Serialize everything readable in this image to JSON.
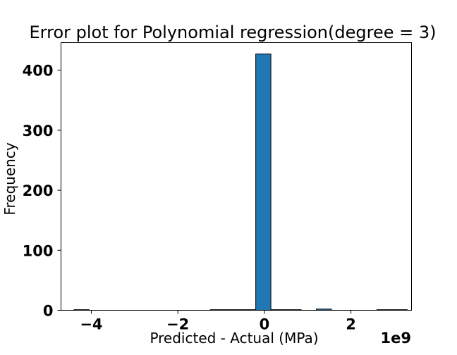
{
  "chart_data": {
    "type": "bar",
    "title": "Error plot for Polynomial regression(degree = 3)",
    "xlabel": "Predicted - Actual (MPa)",
    "ylabel": "Frequency",
    "x_offset_label": "1e9",
    "xlim": [
      -4.7,
      3.4
    ],
    "ylim": [
      0,
      446
    ],
    "xticks": [
      -4,
      -2,
      0,
      2
    ],
    "xtick_labels": [
      "−4",
      "−2",
      "0",
      "2"
    ],
    "yticks": [
      0,
      100,
      200,
      300,
      400
    ],
    "ytick_labels": [
      "0",
      "100",
      "200",
      "300",
      "400"
    ],
    "bar_color": "#1f77b4",
    "grid": false,
    "bins": [
      {
        "x0": -4.4,
        "x1": -4.05,
        "value": 1
      },
      {
        "x0": -4.05,
        "x1": -3.7,
        "value": 0
      },
      {
        "x0": -3.7,
        "x1": -3.35,
        "value": 0
      },
      {
        "x0": -3.35,
        "x1": -3.0,
        "value": 0
      },
      {
        "x0": -3.0,
        "x1": -2.65,
        "value": 0
      },
      {
        "x0": -2.65,
        "x1": -2.3,
        "value": 0
      },
      {
        "x0": -2.3,
        "x1": -1.95,
        "value": 0
      },
      {
        "x0": -1.95,
        "x1": -1.6,
        "value": 0
      },
      {
        "x0": -1.6,
        "x1": -1.25,
        "value": 0
      },
      {
        "x0": -1.25,
        "x1": -0.9,
        "value": 1
      },
      {
        "x0": -0.9,
        "x1": -0.55,
        "value": 1
      },
      {
        "x0": -0.55,
        "x1": -0.2,
        "value": 1
      },
      {
        "x0": -0.2,
        "x1": 0.15,
        "value": 427
      },
      {
        "x0": 0.15,
        "x1": 0.5,
        "value": 1
      },
      {
        "x0": 0.5,
        "x1": 0.85,
        "value": 1
      },
      {
        "x0": 0.85,
        "x1": 1.2,
        "value": 0
      },
      {
        "x0": 1.2,
        "x1": 1.55,
        "value": 2
      },
      {
        "x0": 1.55,
        "x1": 1.9,
        "value": 0
      },
      {
        "x0": 1.9,
        "x1": 2.25,
        "value": 0
      },
      {
        "x0": 2.25,
        "x1": 2.6,
        "value": 0
      },
      {
        "x0": 2.6,
        "x1": 2.95,
        "value": 1
      },
      {
        "x0": 2.95,
        "x1": 3.3,
        "value": 1
      }
    ]
  }
}
